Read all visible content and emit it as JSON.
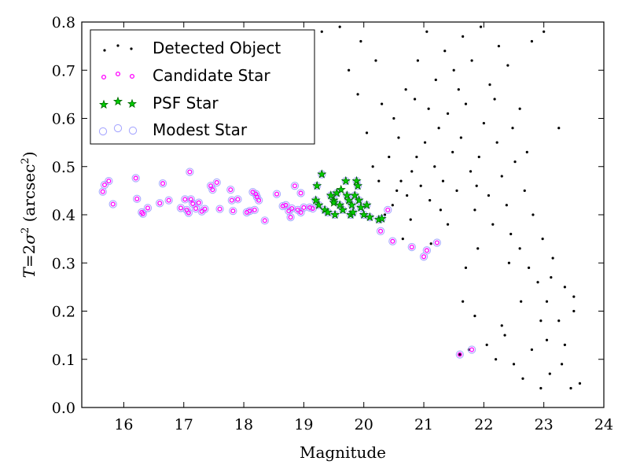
{
  "chart_data": {
    "type": "scatter",
    "xlabel": "Magnitude",
    "ylabel_parts": [
      "T",
      "=",
      "2",
      "σ",
      "2",
      " (arcsec",
      "2",
      ")"
    ],
    "xlim": [
      15.3,
      24.0
    ],
    "ylim": [
      0.0,
      0.8
    ],
    "xticks": [
      "16",
      "17",
      "18",
      "19",
      "20",
      "21",
      "22",
      "23",
      "24"
    ],
    "yticks": [
      "0.0",
      "0.1",
      "0.2",
      "0.3",
      "0.4",
      "0.5",
      "0.6",
      "0.7",
      "0.8"
    ],
    "legend_position": "top-left",
    "grid": false,
    "series": [
      {
        "name": "Detected Object",
        "marker": "dot",
        "color": "#000000",
        "points": [
          [
            20.35,
            0.4
          ],
          [
            20.48,
            0.42
          ],
          [
            20.55,
            0.45
          ],
          [
            20.62,
            0.47
          ],
          [
            20.72,
            0.44
          ],
          [
            20.8,
            0.49
          ],
          [
            20.88,
            0.52
          ],
          [
            20.95,
            0.46
          ],
          [
            21.02,
            0.55
          ],
          [
            21.1,
            0.43
          ],
          [
            21.18,
            0.5
          ],
          [
            21.25,
            0.58
          ],
          [
            21.32,
            0.47
          ],
          [
            21.4,
            0.61
          ],
          [
            21.48,
            0.53
          ],
          [
            21.55,
            0.45
          ],
          [
            21.62,
            0.56
          ],
          [
            21.7,
            0.63
          ],
          [
            21.78,
            0.49
          ],
          [
            21.85,
            0.41
          ],
          [
            21.92,
            0.52
          ],
          [
            22.0,
            0.59
          ],
          [
            22.08,
            0.44
          ],
          [
            22.15,
            0.38
          ],
          [
            22.22,
            0.55
          ],
          [
            22.3,
            0.48
          ],
          [
            22.38,
            0.42
          ],
          [
            22.45,
            0.36
          ],
          [
            22.52,
            0.51
          ],
          [
            22.6,
            0.33
          ],
          [
            22.68,
            0.45
          ],
          [
            22.75,
            0.29
          ],
          [
            22.82,
            0.4
          ],
          [
            22.9,
            0.26
          ],
          [
            22.98,
            0.35
          ],
          [
            23.05,
            0.22
          ],
          [
            23.15,
            0.31
          ],
          [
            23.25,
            0.18
          ],
          [
            23.35,
            0.25
          ],
          [
            23.5,
            0.2
          ],
          [
            20.5,
            0.6
          ],
          [
            20.7,
            0.66
          ],
          [
            20.9,
            0.72
          ],
          [
            21.05,
            0.78
          ],
          [
            21.2,
            0.68
          ],
          [
            21.35,
            0.74
          ],
          [
            21.5,
            0.7
          ],
          [
            21.65,
            0.77
          ],
          [
            21.8,
            0.72
          ],
          [
            21.95,
            0.79
          ],
          [
            22.1,
            0.67
          ],
          [
            22.25,
            0.75
          ],
          [
            22.4,
            0.71
          ],
          [
            22.6,
            0.62
          ],
          [
            22.8,
            0.76
          ],
          [
            23.0,
            0.78
          ],
          [
            19.3,
            0.78
          ],
          [
            19.6,
            0.79
          ],
          [
            19.95,
            0.76
          ],
          [
            20.2,
            0.72
          ],
          [
            19.9,
            0.65
          ],
          [
            20.05,
            0.57
          ],
          [
            20.15,
            0.5
          ],
          [
            20.25,
            0.47
          ],
          [
            21.6,
            0.11
          ],
          [
            21.75,
            0.12
          ],
          [
            22.05,
            0.13
          ],
          [
            22.2,
            0.1
          ],
          [
            22.35,
            0.15
          ],
          [
            22.5,
            0.09
          ],
          [
            22.65,
            0.06
          ],
          [
            22.8,
            0.12
          ],
          [
            22.95,
            0.04
          ],
          [
            23.1,
            0.07
          ],
          [
            23.3,
            0.09
          ],
          [
            23.45,
            0.04
          ],
          [
            23.6,
            0.05
          ],
          [
            21.65,
            0.22
          ],
          [
            21.85,
            0.19
          ],
          [
            22.3,
            0.17
          ],
          [
            22.95,
            0.18
          ],
          [
            23.05,
            0.14
          ],
          [
            23.35,
            0.13
          ],
          [
            23.5,
            0.23
          ],
          [
            23.25,
            0.58
          ],
          [
            19.75,
            0.7
          ],
          [
            20.65,
            0.35
          ],
          [
            21.4,
            0.38
          ],
          [
            20.42,
            0.52
          ],
          [
            20.58,
            0.56
          ],
          [
            20.78,
            0.39
          ],
          [
            21.08,
            0.62
          ],
          [
            21.28,
            0.41
          ],
          [
            21.58,
            0.66
          ],
          [
            21.88,
            0.46
          ],
          [
            22.18,
            0.64
          ],
          [
            22.48,
            0.58
          ],
          [
            22.72,
            0.53
          ],
          [
            21.12,
            0.34
          ],
          [
            21.9,
            0.33
          ],
          [
            22.42,
            0.3
          ],
          [
            23.12,
            0.27
          ],
          [
            21.7,
            0.29
          ],
          [
            22.62,
            0.22
          ],
          [
            20.3,
            0.63
          ],
          [
            20.85,
            0.64
          ]
        ]
      },
      {
        "name": "Candidate Star",
        "marker": "circle-small",
        "color": "#ff00ff",
        "points": [
          [
            15.65,
            0.448
          ],
          [
            15.68,
            0.462
          ],
          [
            15.75,
            0.47
          ],
          [
            15.82,
            0.422
          ],
          [
            16.2,
            0.476
          ],
          [
            16.22,
            0.433
          ],
          [
            16.3,
            0.405
          ],
          [
            16.32,
            0.402
          ],
          [
            16.4,
            0.414
          ],
          [
            16.6,
            0.424
          ],
          [
            16.65,
            0.465
          ],
          [
            16.75,
            0.43
          ],
          [
            16.95,
            0.414
          ],
          [
            17.02,
            0.432
          ],
          [
            17.05,
            0.41
          ],
          [
            17.08,
            0.404
          ],
          [
            17.1,
            0.489
          ],
          [
            17.12,
            0.432
          ],
          [
            17.15,
            0.423
          ],
          [
            17.2,
            0.413
          ],
          [
            17.25,
            0.425
          ],
          [
            17.3,
            0.407
          ],
          [
            17.35,
            0.412
          ],
          [
            17.45,
            0.46
          ],
          [
            17.48,
            0.452
          ],
          [
            17.55,
            0.467
          ],
          [
            17.6,
            0.412
          ],
          [
            17.78,
            0.452
          ],
          [
            17.8,
            0.43
          ],
          [
            17.82,
            0.408
          ],
          [
            17.9,
            0.432
          ],
          [
            18.05,
            0.405
          ],
          [
            18.1,
            0.408
          ],
          [
            18.15,
            0.447
          ],
          [
            18.18,
            0.41
          ],
          [
            18.2,
            0.443
          ],
          [
            18.22,
            0.437
          ],
          [
            18.25,
            0.43
          ],
          [
            18.35,
            0.388
          ],
          [
            18.55,
            0.443
          ],
          [
            18.7,
            0.42
          ],
          [
            18.75,
            0.408
          ],
          [
            18.8,
            0.413
          ],
          [
            18.85,
            0.46
          ],
          [
            18.9,
            0.41
          ],
          [
            18.95,
            0.405
          ],
          [
            19.0,
            0.415
          ],
          [
            19.1,
            0.415
          ],
          [
            19.15,
            0.413
          ],
          [
            18.95,
            0.445
          ],
          [
            18.78,
            0.395
          ],
          [
            18.65,
            0.418
          ],
          [
            20.28,
            0.366
          ],
          [
            20.4,
            0.41
          ],
          [
            20.48,
            0.345
          ],
          [
            20.8,
            0.333
          ],
          [
            21.0,
            0.313
          ],
          [
            21.05,
            0.326
          ],
          [
            21.22,
            0.342
          ],
          [
            21.6,
            0.11
          ],
          [
            21.8,
            0.12
          ]
        ]
      },
      {
        "name": "PSF Star",
        "marker": "star",
        "color": "#00cc00",
        "points": [
          [
            19.2,
            0.43
          ],
          [
            19.22,
            0.46
          ],
          [
            19.25,
            0.42
          ],
          [
            19.3,
            0.484
          ],
          [
            19.35,
            0.41
          ],
          [
            19.4,
            0.405
          ],
          [
            19.45,
            0.44
          ],
          [
            19.5,
            0.43
          ],
          [
            19.52,
            0.4
          ],
          [
            19.55,
            0.445
          ],
          [
            19.6,
            0.42
          ],
          [
            19.65,
            0.41
          ],
          [
            19.7,
            0.47
          ],
          [
            19.72,
            0.44
          ],
          [
            19.75,
            0.43
          ],
          [
            19.78,
            0.4
          ],
          [
            19.8,
            0.42
          ],
          [
            19.82,
            0.405
          ],
          [
            19.85,
            0.44
          ],
          [
            19.88,
            0.47
          ],
          [
            19.9,
            0.46
          ],
          [
            19.92,
            0.43
          ],
          [
            19.95,
            0.415
          ],
          [
            20.0,
            0.4
          ],
          [
            20.05,
            0.42
          ],
          [
            20.1,
            0.395
          ],
          [
            20.25,
            0.39
          ],
          [
            20.3,
            0.392
          ],
          [
            19.62,
            0.452
          ],
          [
            19.5,
            0.425
          ]
        ]
      },
      {
        "name": "Modest Star",
        "marker": "circle-large",
        "color": "#a9a9ff",
        "points": [
          [
            15.65,
            0.448
          ],
          [
            15.68,
            0.462
          ],
          [
            15.75,
            0.47
          ],
          [
            15.82,
            0.422
          ],
          [
            16.2,
            0.476
          ],
          [
            16.22,
            0.433
          ],
          [
            16.3,
            0.405
          ],
          [
            16.32,
            0.402
          ],
          [
            16.4,
            0.414
          ],
          [
            16.6,
            0.424
          ],
          [
            16.65,
            0.465
          ],
          [
            16.75,
            0.43
          ],
          [
            16.95,
            0.414
          ],
          [
            17.02,
            0.432
          ],
          [
            17.05,
            0.41
          ],
          [
            17.08,
            0.404
          ],
          [
            17.1,
            0.489
          ],
          [
            17.12,
            0.432
          ],
          [
            17.15,
            0.423
          ],
          [
            17.2,
            0.413
          ],
          [
            17.25,
            0.425
          ],
          [
            17.3,
            0.407
          ],
          [
            17.35,
            0.412
          ],
          [
            17.45,
            0.46
          ],
          [
            17.48,
            0.452
          ],
          [
            17.55,
            0.467
          ],
          [
            17.6,
            0.412
          ],
          [
            17.78,
            0.452
          ],
          [
            17.8,
            0.43
          ],
          [
            17.82,
            0.408
          ],
          [
            17.9,
            0.432
          ],
          [
            18.05,
            0.405
          ],
          [
            18.1,
            0.408
          ],
          [
            18.15,
            0.447
          ],
          [
            18.18,
            0.41
          ],
          [
            18.2,
            0.443
          ],
          [
            18.22,
            0.437
          ],
          [
            18.25,
            0.43
          ],
          [
            18.35,
            0.388
          ],
          [
            18.55,
            0.443
          ],
          [
            18.7,
            0.42
          ],
          [
            18.75,
            0.408
          ],
          [
            18.8,
            0.413
          ],
          [
            18.85,
            0.46
          ],
          [
            18.9,
            0.41
          ],
          [
            18.95,
            0.405
          ],
          [
            19.0,
            0.415
          ],
          [
            19.1,
            0.415
          ],
          [
            19.15,
            0.413
          ],
          [
            18.95,
            0.445
          ],
          [
            18.78,
            0.395
          ],
          [
            18.65,
            0.418
          ],
          [
            19.2,
            0.43
          ],
          [
            19.22,
            0.46
          ],
          [
            19.25,
            0.42
          ],
          [
            19.3,
            0.484
          ],
          [
            19.35,
            0.41
          ],
          [
            19.4,
            0.405
          ],
          [
            19.45,
            0.44
          ],
          [
            19.5,
            0.43
          ],
          [
            19.52,
            0.4
          ],
          [
            19.55,
            0.445
          ],
          [
            19.6,
            0.42
          ],
          [
            19.65,
            0.41
          ],
          [
            19.7,
            0.47
          ],
          [
            19.72,
            0.44
          ],
          [
            19.75,
            0.43
          ],
          [
            19.78,
            0.4
          ],
          [
            19.8,
            0.42
          ],
          [
            19.82,
            0.405
          ],
          [
            19.85,
            0.44
          ],
          [
            19.88,
            0.47
          ],
          [
            19.9,
            0.46
          ],
          [
            19.92,
            0.43
          ],
          [
            19.95,
            0.415
          ],
          [
            20.0,
            0.4
          ],
          [
            20.05,
            0.42
          ],
          [
            20.1,
            0.395
          ],
          [
            20.25,
            0.39
          ],
          [
            20.3,
            0.392
          ],
          [
            20.28,
            0.366
          ],
          [
            20.4,
            0.41
          ],
          [
            20.48,
            0.345
          ],
          [
            20.8,
            0.333
          ],
          [
            21.0,
            0.313
          ],
          [
            21.05,
            0.326
          ],
          [
            21.22,
            0.342
          ],
          [
            21.6,
            0.11
          ],
          [
            21.8,
            0.12
          ]
        ]
      }
    ]
  }
}
